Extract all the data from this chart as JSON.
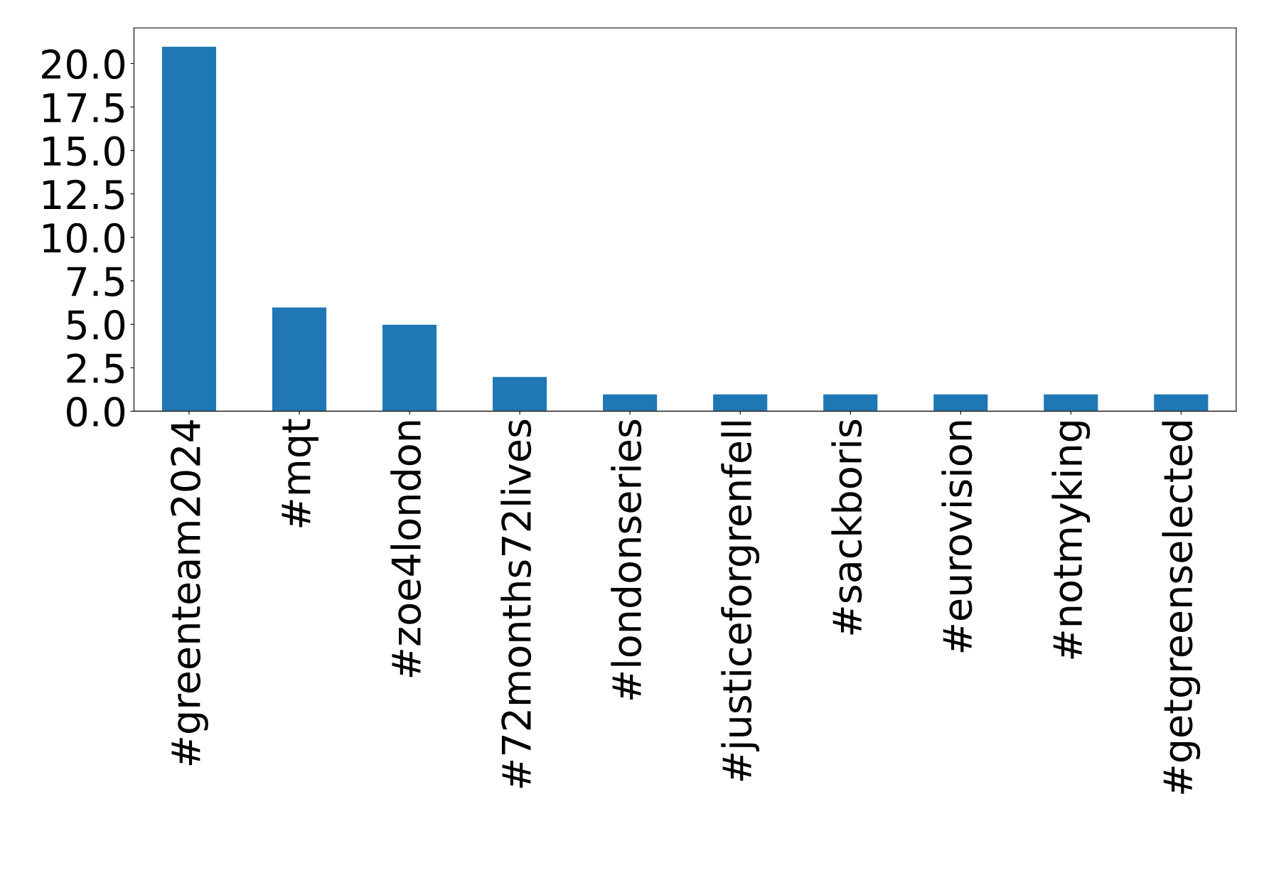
{
  "chart_data": {
    "type": "bar",
    "categories": [
      "#greenteam2024",
      "#mqt",
      "#zoe4london",
      "#72months72lives",
      "#londonseries",
      "#justiceforgrenfell",
      "#sackboris",
      "#eurovision",
      "#notmyking",
      "#getgreenselected"
    ],
    "values": [
      21,
      6,
      5,
      2,
      1,
      1,
      1,
      1,
      1,
      1
    ],
    "color": "#1f77b4",
    "ylim": [
      0,
      22.05
    ],
    "yticks": [
      {
        "value": 0,
        "label": "0.0"
      },
      {
        "value": 2.5,
        "label": "2.5"
      },
      {
        "value": 5,
        "label": "5.0"
      },
      {
        "value": 7.5,
        "label": "7.5"
      },
      {
        "value": 10,
        "label": "10.0"
      },
      {
        "value": 12.5,
        "label": "12.5"
      },
      {
        "value": 15,
        "label": "15.0"
      },
      {
        "value": 17.5,
        "label": "17.5"
      },
      {
        "value": 20,
        "label": "20.0"
      }
    ],
    "grid": false
  }
}
